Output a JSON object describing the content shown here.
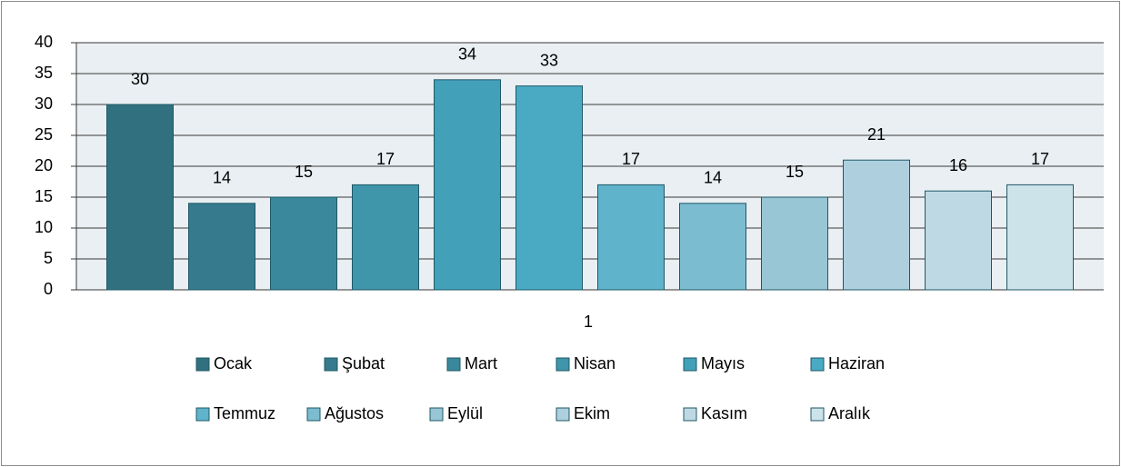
{
  "chart_data": {
    "type": "bar",
    "categories": [
      "1"
    ],
    "series": [
      {
        "name": "Ocak",
        "color": "#31707f",
        "values": [
          30
        ]
      },
      {
        "name": "Şubat",
        "color": "#357b8d",
        "values": [
          14
        ]
      },
      {
        "name": "Mart",
        "color": "#3a889b",
        "values": [
          15
        ]
      },
      {
        "name": "Nisan",
        "color": "#3f95aa",
        "values": [
          17
        ]
      },
      {
        "name": "Mayıs",
        "color": "#42a0b8",
        "values": [
          34
        ]
      },
      {
        "name": "Haziran",
        "color": "#4aaac4",
        "values": [
          33
        ]
      },
      {
        "name": "Temmuz",
        "color": "#5fb3cb",
        "values": [
          17
        ]
      },
      {
        "name": "Ağustos",
        "color": "#7cbcd0",
        "values": [
          14
        ]
      },
      {
        "name": "Eylül",
        "color": "#98c6d5",
        "values": [
          15
        ]
      },
      {
        "name": "Ekim",
        "color": "#aed0de",
        "values": [
          21
        ]
      },
      {
        "name": "Kasım",
        "color": "#bfd9e4",
        "values": [
          16
        ]
      },
      {
        "name": "Aralık",
        "color": "#cde3ea",
        "values": [
          17
        ]
      }
    ],
    "ylim": [
      0,
      40
    ],
    "yticks": [
      0,
      5,
      10,
      15,
      20,
      25,
      30,
      35,
      40
    ],
    "grid": true,
    "legend": "bottom"
  }
}
